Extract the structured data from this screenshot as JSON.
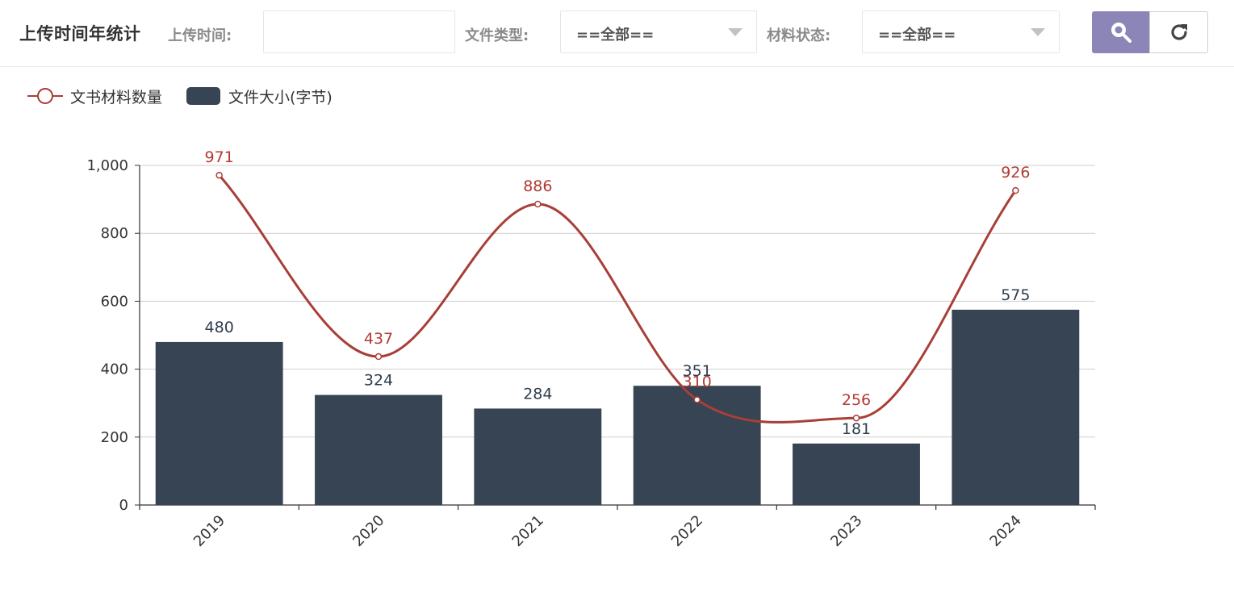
{
  "toolbar": {
    "title": "上传时间年统计",
    "upload_time_label": "上传时间:",
    "upload_time_value": "",
    "file_type_label": "文件类型:",
    "file_type_value": "==全部==",
    "material_status_label": "材料状态:",
    "material_status_value": "==全部==",
    "search_icon": "search-icon",
    "reset_icon": "refresh-icon"
  },
  "colors": {
    "bar": "#364453",
    "line": "#a83f38",
    "search_button": "#8c86b8",
    "grid": "#cfcfcf",
    "axis": "#333333"
  },
  "chart_data": {
    "type": "bar",
    "categories": [
      "2019",
      "2020",
      "2021",
      "2022",
      "2023",
      "2024"
    ],
    "series": [
      {
        "name": "文书材料数量",
        "type": "line",
        "smooth": true,
        "values": [
          971,
          437,
          886,
          310,
          256,
          926
        ]
      },
      {
        "name": "文件大小(字节)",
        "type": "bar",
        "values": [
          480,
          324,
          284,
          351,
          181,
          575
        ]
      }
    ],
    "ylim": [
      0,
      1000
    ],
    "yticks": [
      "0",
      "200",
      "400",
      "600",
      "800",
      "1,000"
    ],
    "xlabel_rotation": "-45deg",
    "grid": true,
    "legend_position": "top-left",
    "xlabel": "",
    "ylabel": ""
  }
}
